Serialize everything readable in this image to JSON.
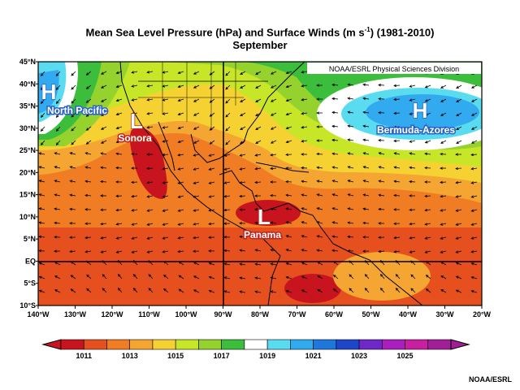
{
  "title": {
    "prefix": "Mean Sea Level Pressure (hPa) and Surface Winds (m s",
    "exp": "-1",
    "suffix": ") (1981-2010)",
    "subtitle": "September"
  },
  "map": {
    "source_label": "NOAA/ESRL Physical Sciences Division",
    "lat_labels": [
      "45°N",
      "40°N",
      "35°N",
      "30°N",
      "25°N",
      "20°N",
      "15°N",
      "10°N",
      "5°N",
      "EQ",
      "5°S",
      "10°S"
    ],
    "lon_labels": [
      "140°W",
      "130°W",
      "120°W",
      "110°W",
      "100°W",
      "90°W",
      "80°W",
      "70°W",
      "60°W",
      "50°W",
      "40°W",
      "30°W",
      "20°W"
    ],
    "pressure_centers": [
      {
        "letter": "H",
        "name": "North Pacific",
        "color": "#2a63c8"
      },
      {
        "letter": "L",
        "name": "Sonora",
        "color": "#c0241d"
      },
      {
        "letter": "L",
        "name": "Panama",
        "color": "#c0241d"
      },
      {
        "letter": "H",
        "name": "Bermuda-Azores",
        "color": "#2a63c8"
      }
    ]
  },
  "colorbar": {
    "labels": [
      "1011",
      "1013",
      "1015",
      "1017",
      "1019",
      "1021",
      "1023",
      "1025"
    ],
    "colors": [
      "#c8141e",
      "#e6501e",
      "#f07d23",
      "#f5a532",
      "#f5d232",
      "#c8e628",
      "#96d22d",
      "#3cbe3c",
      "#ffffff",
      "#5adcf0",
      "#32aaf0",
      "#1e78dc",
      "#1e46c8",
      "#6e28c8",
      "#aa1ebe",
      "#c81ea0",
      "#a01e96"
    ]
  },
  "credit": "NOAA/ESRL"
}
